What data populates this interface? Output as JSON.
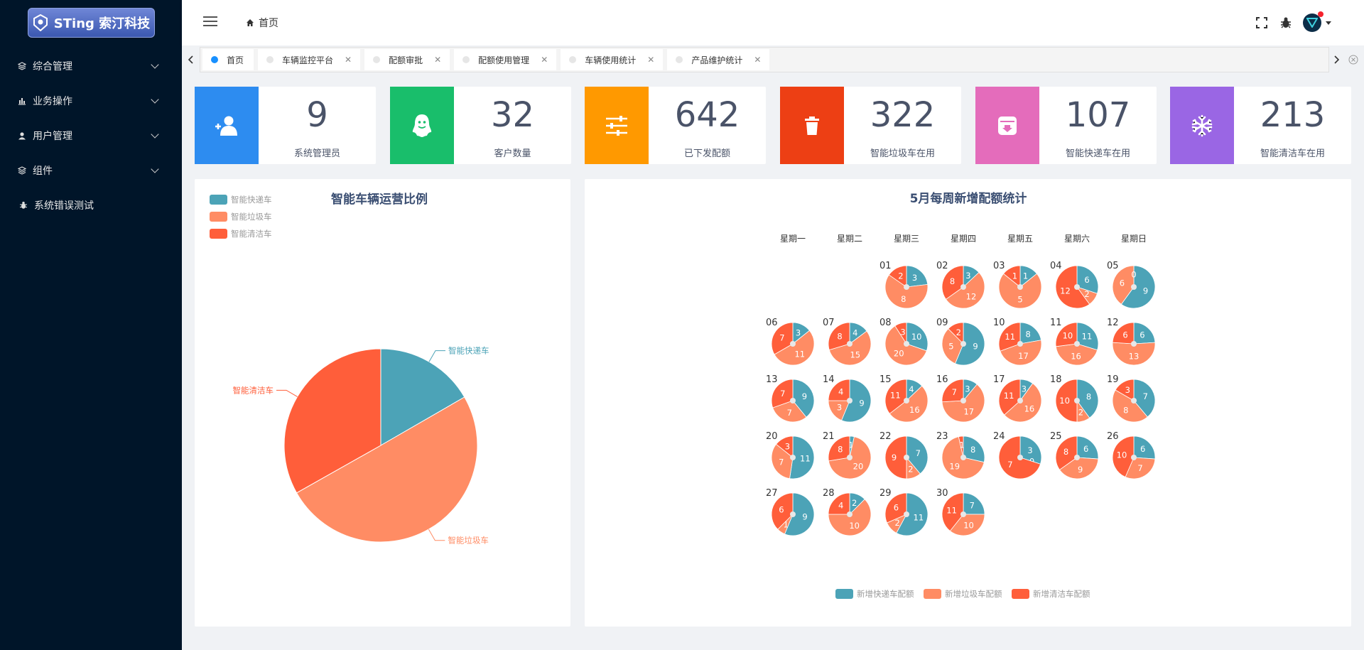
{
  "sidebar": {
    "logo_text": "STing 索汀科技",
    "items": [
      {
        "label": "综合管理",
        "icon": "stack-icon",
        "has_children": true
      },
      {
        "label": "业务操作",
        "icon": "bar-chart-icon",
        "has_children": true
      },
      {
        "label": "用户管理",
        "icon": "user-icon",
        "has_children": true
      },
      {
        "label": "组件",
        "icon": "stack-icon",
        "has_children": true
      },
      {
        "label": "系统错误测试",
        "icon": "bug-icon",
        "has_children": false
      }
    ]
  },
  "header": {
    "breadcrumb": "首页",
    "icons": [
      "fullscreen-icon",
      "bug-icon",
      "avatar"
    ]
  },
  "tabs": [
    {
      "label": "首页",
      "active": true,
      "closable": false
    },
    {
      "label": "车辆监控平台",
      "active": false,
      "closable": true
    },
    {
      "label": "配额审批",
      "active": false,
      "closable": true
    },
    {
      "label": "配额使用管理",
      "active": false,
      "closable": true
    },
    {
      "label": "车辆使用统计",
      "active": false,
      "closable": true
    },
    {
      "label": "产品维护统计",
      "active": false,
      "closable": true
    }
  ],
  "stats": [
    {
      "value": "9",
      "label": "系统管理员",
      "color": "#2d8cf0",
      "icon": "add-user-icon"
    },
    {
      "value": "32",
      "label": "客户数量",
      "color": "#19be6b",
      "icon": "ghost-icon"
    },
    {
      "value": "642",
      "label": "已下发配额",
      "color": "#ff9900",
      "icon": "sliders-icon"
    },
    {
      "value": "322",
      "label": "智能垃圾车在用",
      "color": "#ed3f14",
      "icon": "trash-icon"
    },
    {
      "value": "107",
      "label": "智能快递车在用",
      "color": "#e46cbb",
      "icon": "inbox-icon"
    },
    {
      "value": "213",
      "label": "智能清洁车在用",
      "color": "#9a66e4",
      "icon": "snowflake-icon"
    }
  ],
  "colors": {
    "express": "#4ca3b7",
    "garbage": "#ff8c64",
    "cleaning": "#ff5e3a"
  },
  "chart_data": [
    {
      "type": "pie",
      "title": "智能车辆运营比例",
      "legend": [
        "智能快递车",
        "智能垃圾车",
        "智能清洁车"
      ],
      "legend_position": "top-left",
      "slices": [
        {
          "name": "智能快递车",
          "value": 107
        },
        {
          "name": "智能垃圾车",
          "value": 322
        },
        {
          "name": "智能清洁车",
          "value": 213
        }
      ]
    },
    {
      "type": "pie",
      "title": "5月每周新增配额统计",
      "weekdays": [
        "星期一",
        "星期二",
        "星期三",
        "星期四",
        "星期五",
        "星期六",
        "星期日"
      ],
      "legend": [
        "新增快递车配额",
        "新增垃圾车配额",
        "新增清洁车配额"
      ],
      "legend_position": "bottom",
      "first_weekday_index": 2,
      "days": [
        {
          "day": "01",
          "values": [
            3,
            8,
            2
          ]
        },
        {
          "day": "02",
          "values": [
            3,
            12,
            8
          ]
        },
        {
          "day": "03",
          "values": [
            1,
            5,
            1
          ]
        },
        {
          "day": "04",
          "values": [
            6,
            2,
            12
          ]
        },
        {
          "day": "05",
          "values": [
            9,
            6,
            0
          ]
        },
        {
          "day": "06",
          "values": [
            3,
            11,
            7
          ]
        },
        {
          "day": "07",
          "values": [
            4,
            15,
            8
          ]
        },
        {
          "day": "08",
          "values": [
            10,
            20,
            3
          ]
        },
        {
          "day": "09",
          "values": [
            9,
            5,
            2
          ]
        },
        {
          "day": "10",
          "values": [
            8,
            17,
            11
          ]
        },
        {
          "day": "11",
          "values": [
            11,
            16,
            10
          ]
        },
        {
          "day": "12",
          "values": [
            6,
            13,
            6
          ]
        },
        {
          "day": "13",
          "values": [
            9,
            7,
            7
          ]
        },
        {
          "day": "14",
          "values": [
            9,
            3,
            4
          ]
        },
        {
          "day": "15",
          "values": [
            4,
            16,
            11
          ]
        },
        {
          "day": "16",
          "values": [
            3,
            17,
            7
          ]
        },
        {
          "day": "17",
          "values": [
            3,
            16,
            11
          ]
        },
        {
          "day": "18",
          "values": [
            8,
            2,
            10
          ]
        },
        {
          "day": "19",
          "values": [
            7,
            8,
            3
          ]
        },
        {
          "day": "20",
          "values": [
            11,
            7,
            3
          ]
        },
        {
          "day": "21",
          "values": [
            1,
            20,
            8
          ]
        },
        {
          "day": "22",
          "values": [
            7,
            2,
            9
          ]
        },
        {
          "day": "23",
          "values": [
            8,
            19,
            1
          ]
        },
        {
          "day": "24",
          "values": [
            3,
            0,
            7
          ]
        },
        {
          "day": "25",
          "values": [
            6,
            9,
            8
          ]
        },
        {
          "day": "26",
          "values": [
            6,
            7,
            10
          ]
        },
        {
          "day": "27",
          "values": [
            9,
            1,
            6
          ]
        },
        {
          "day": "28",
          "values": [
            2,
            10,
            4
          ]
        },
        {
          "day": "29",
          "values": [
            11,
            2,
            6
          ]
        },
        {
          "day": "30",
          "values": [
            7,
            10,
            11
          ]
        }
      ]
    }
  ]
}
